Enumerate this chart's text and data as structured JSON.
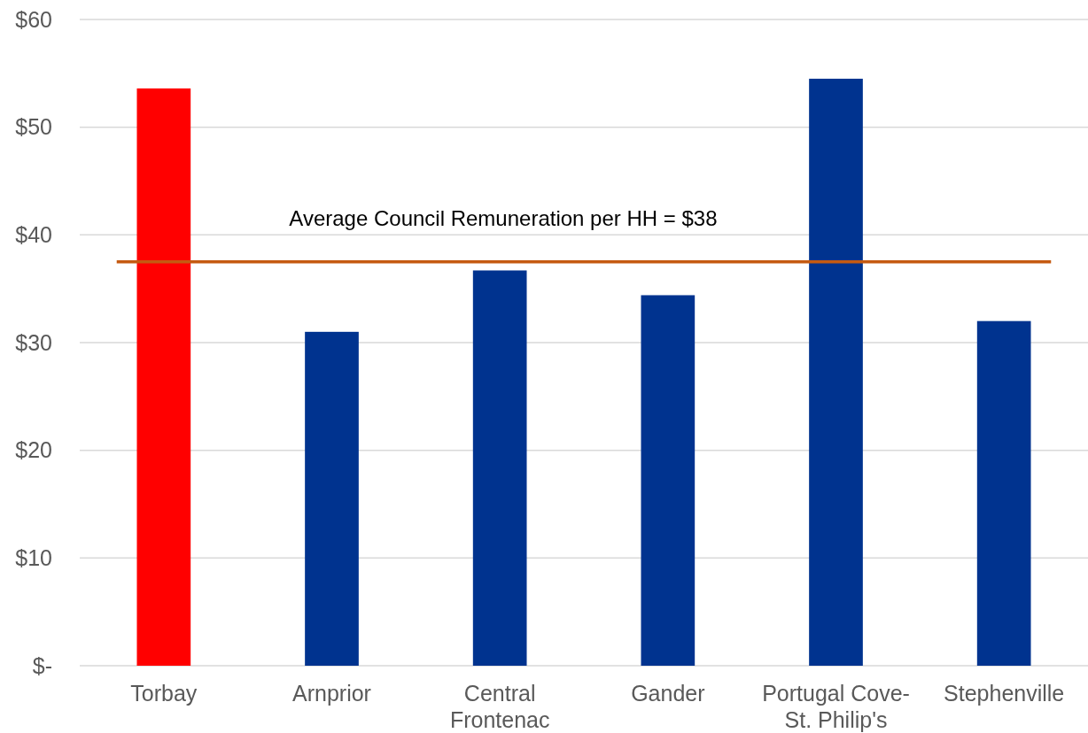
{
  "chart_data": {
    "type": "bar",
    "categories": [
      "Torbay",
      "Arnprior",
      "Central Frontenac",
      "Gander",
      "Portugal Cove-St. Philip's",
      "Stephenville"
    ],
    "values": [
      53.6,
      31.0,
      36.7,
      34.4,
      54.5,
      32.0
    ],
    "colors": [
      "#ff0000",
      "#00338f",
      "#00338f",
      "#00338f",
      "#00338f",
      "#00338f"
    ],
    "ylim": [
      0,
      60
    ],
    "yticks": [
      {
        "value": 0,
        "label": "$-"
      },
      {
        "value": 10,
        "label": "$10"
      },
      {
        "value": 20,
        "label": "$20"
      },
      {
        "value": 30,
        "label": "$30"
      },
      {
        "value": 40,
        "label": "$40"
      },
      {
        "value": 50,
        "label": "$50"
      },
      {
        "value": 60,
        "label": "$60"
      }
    ],
    "grid": "y",
    "ref_lines": [
      {
        "axis": "y",
        "value": 37.5,
        "label": "Average Council Remuneration per HH = $38",
        "color": "#c55a11"
      }
    ]
  }
}
